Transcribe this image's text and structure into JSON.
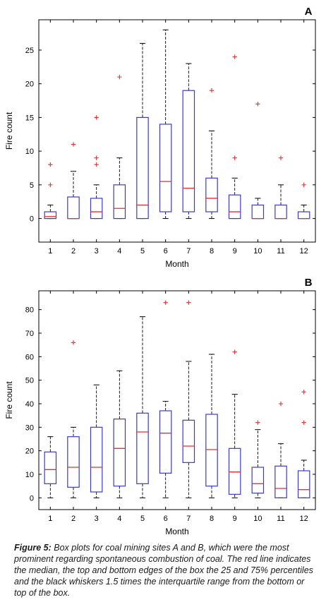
{
  "colors": {
    "box": "#3b3bc8",
    "median": "#e03030",
    "outlier": "#e03030",
    "whisker": "#000000"
  },
  "chart_data": [
    {
      "type": "box",
      "panel_label": "A",
      "xlabel": "Month",
      "ylabel": "Fire count",
      "ylim": [
        -3.5,
        29.5
      ],
      "yticks": [
        0,
        5,
        10,
        15,
        20,
        25
      ],
      "ytick_labels": [
        "0",
        "5",
        "10",
        "15",
        "20",
        "25"
      ],
      "categories": [
        "1",
        "2",
        "3",
        "4",
        "5",
        "6",
        "7",
        "8",
        "9",
        "10",
        "11",
        "12"
      ],
      "boxes": [
        {
          "whisker_low": 0,
          "q1": 0,
          "median": 0.3,
          "q3": 1,
          "whisker_high": 2,
          "outliers": [
            5,
            8
          ]
        },
        {
          "whisker_low": 0,
          "q1": 0,
          "median": 0,
          "q3": 3.2,
          "whisker_high": 7,
          "outliers": [
            11
          ]
        },
        {
          "whisker_low": 0,
          "q1": 0,
          "median": 1,
          "q3": 3,
          "whisker_high": 5,
          "outliers": [
            8,
            9,
            15
          ]
        },
        {
          "whisker_low": 0,
          "q1": 0,
          "median": 1.5,
          "q3": 5,
          "whisker_high": 9,
          "outliers": [
            21
          ]
        },
        {
          "whisker_low": 0,
          "q1": 0,
          "median": 2,
          "q3": 15,
          "whisker_high": 26,
          "outliers": []
        },
        {
          "whisker_low": 0,
          "q1": 1,
          "median": 5.5,
          "q3": 14,
          "whisker_high": 28,
          "outliers": []
        },
        {
          "whisker_low": 0,
          "q1": 1,
          "median": 4.5,
          "q3": 19,
          "whisker_high": 23,
          "outliers": []
        },
        {
          "whisker_low": 0,
          "q1": 1,
          "median": 3,
          "q3": 6,
          "whisker_high": 13,
          "outliers": [
            19
          ]
        },
        {
          "whisker_low": 0,
          "q1": 0,
          "median": 1,
          "q3": 3.5,
          "whisker_high": 6,
          "outliers": [
            9,
            24
          ]
        },
        {
          "whisker_low": 0,
          "q1": 0,
          "median": 0,
          "q3": 2,
          "whisker_high": 3,
          "outliers": [
            17
          ]
        },
        {
          "whisker_low": 0,
          "q1": 0,
          "median": 0,
          "q3": 2,
          "whisker_high": 5,
          "outliers": [
            9
          ]
        },
        {
          "whisker_low": 0,
          "q1": 0,
          "median": 0,
          "q3": 1,
          "whisker_high": 2,
          "outliers": [
            5
          ]
        }
      ]
    },
    {
      "type": "box",
      "panel_label": "B",
      "xlabel": "Month",
      "ylabel": "Fire count",
      "ylim": [
        -5,
        88
      ],
      "yticks": [
        0,
        10,
        20,
        30,
        40,
        50,
        60,
        70,
        80
      ],
      "ytick_labels": [
        "0",
        "10",
        "20",
        "30",
        "40",
        "50",
        "60",
        "70",
        "80"
      ],
      "categories": [
        "1",
        "2",
        "3",
        "4",
        "5",
        "6",
        "7",
        "8",
        "9",
        "10",
        "11",
        "12"
      ],
      "boxes": [
        {
          "whisker_low": 0,
          "q1": 6,
          "median": 12,
          "q3": 19.5,
          "whisker_high": 26,
          "outliers": []
        },
        {
          "whisker_low": 0,
          "q1": 4.5,
          "median": 13,
          "q3": 26,
          "whisker_high": 30,
          "outliers": [
            66
          ]
        },
        {
          "whisker_low": 0,
          "q1": 2.5,
          "median": 13,
          "q3": 30,
          "whisker_high": 48,
          "outliers": []
        },
        {
          "whisker_low": 0,
          "q1": 5,
          "median": 21,
          "q3": 33.5,
          "whisker_high": 54,
          "outliers": []
        },
        {
          "whisker_low": 0,
          "q1": 6,
          "median": 28,
          "q3": 36,
          "whisker_high": 77,
          "outliers": []
        },
        {
          "whisker_low": 0,
          "q1": 10.5,
          "median": 27.5,
          "q3": 37,
          "whisker_high": 41,
          "outliers": [
            83
          ]
        },
        {
          "whisker_low": 0,
          "q1": 15,
          "median": 22,
          "q3": 33,
          "whisker_high": 58,
          "outliers": [
            83
          ]
        },
        {
          "whisker_low": 0,
          "q1": 5,
          "median": 20.5,
          "q3": 35.5,
          "whisker_high": 61,
          "outliers": []
        },
        {
          "whisker_low": 0,
          "q1": 1.5,
          "median": 11,
          "q3": 21,
          "whisker_high": 44,
          "outliers": [
            62
          ]
        },
        {
          "whisker_low": 0,
          "q1": 2,
          "median": 6,
          "q3": 13,
          "whisker_high": 29,
          "outliers": [
            32
          ]
        },
        {
          "whisker_low": 0,
          "q1": 0,
          "median": 4,
          "q3": 13.5,
          "whisker_high": 23,
          "outliers": [
            40
          ]
        },
        {
          "whisker_low": 0,
          "q1": 0,
          "median": 3.5,
          "q3": 11.5,
          "whisker_high": 16,
          "outliers": [
            32,
            45
          ]
        }
      ]
    }
  ],
  "caption": {
    "label": "Figure 5:",
    "text": " Box plots for coal mining sites A and B, which were the most prominent regarding spontaneous combustion of coal. The red line indicates the median, the top and bottom edges of the box the 25 and 75% percentiles and the black whiskers 1.5 times the interquartile range from the bottom or top of the box."
  }
}
